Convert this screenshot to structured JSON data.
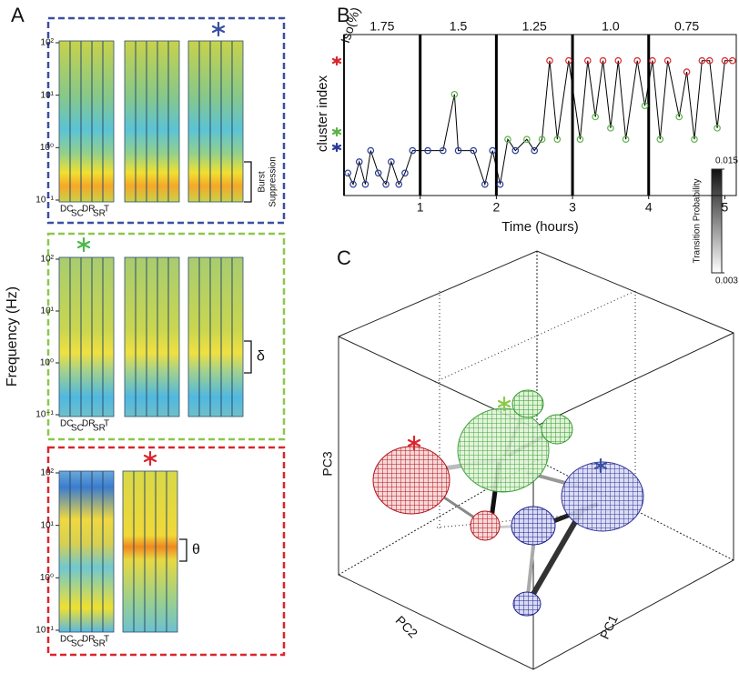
{
  "panel_labels": [
    "A",
    "B",
    "C"
  ],
  "panel_a": {
    "y_label": "Frequency (Hz)",
    "boxes": [
      {
        "tick_labels": [
          "10²",
          "10¹",
          "10⁰",
          "10⁻¹"
        ],
        "column_labels": [
          "DC",
          "SC",
          "DR",
          "SR",
          "T"
        ],
        "annotation": [
          "Burst",
          "Suppression"
        ]
      },
      {
        "tick_labels": [
          "10²",
          "10¹",
          "10⁰",
          "10⁻¹"
        ],
        "column_labels": [
          "DC",
          "SC",
          "DR",
          "SR",
          "T"
        ],
        "annotation": [
          "δ"
        ]
      },
      {
        "tick_labels": [
          "10²",
          "10¹",
          "10⁰",
          "10⁻¹"
        ],
        "column_labels": [
          "DC",
          "SC",
          "DR",
          "SR",
          "T"
        ],
        "annotation": [
          "θ"
        ]
      }
    ]
  },
  "chart_data": {
    "type": "line",
    "x_label": "Time (hours)",
    "y_label": "cluster index",
    "top_label": "Iso(%)",
    "top_categories": [
      "1.75",
      "1.5",
      "1.25",
      "1.0",
      "0.75"
    ],
    "x": [
      0.05,
      0.12,
      0.2,
      0.28,
      0.35,
      0.45,
      0.55,
      0.62,
      0.72,
      0.8,
      0.9,
      1.1,
      1.3,
      1.45,
      1.5,
      1.7,
      1.85,
      1.95,
      2.05,
      2.15,
      2.25,
      2.4,
      2.5,
      2.6,
      2.7,
      2.8,
      2.95,
      3.1,
      3.2,
      3.3,
      3.4,
      3.5,
      3.6,
      3.7,
      3.85,
      3.95,
      4.05,
      4.15,
      4.25,
      4.4,
      4.5,
      4.6,
      4.7,
      4.8,
      4.9,
      5.0,
      5.1
    ],
    "series": [
      {
        "color": "#000000",
        "values": [
          2,
          1,
          3,
          1,
          4,
          2,
          1,
          3,
          1,
          2,
          4,
          4,
          4,
          9,
          4,
          4,
          1,
          4,
          1,
          5,
          4,
          5,
          4,
          5,
          12,
          5,
          12,
          5,
          12,
          7,
          12,
          6,
          12,
          5,
          12,
          8,
          12,
          5,
          12,
          7,
          11,
          5,
          12,
          12,
          6,
          12,
          12
        ],
        "marker_colors": [
          "#2a3b9a",
          "#2a3b9a",
          "#2a3b9a",
          "#2a3b9a",
          "#2a3b9a",
          "#2a3b9a",
          "#2a3b9a",
          "#2a3b9a",
          "#2a3b9a",
          "#2a3b9a",
          "#2a3b9a",
          "#2a3b9a",
          "#2a3b9a",
          "#5cb247",
          "#2a3b9a",
          "#2a3b9a",
          "#2a3b9a",
          "#2a3b9a",
          "#2a3b9a",
          "#5cb247",
          "#2a3b9a",
          "#5cb247",
          "#2a3b9a",
          "#5cb247",
          "#d9262c",
          "#5cb247",
          "#d9262c",
          "#5cb247",
          "#d9262c",
          "#5cb247",
          "#d9262c",
          "#5cb247",
          "#d9262c",
          "#5cb247",
          "#d9262c",
          "#5cb247",
          "#d9262c",
          "#5cb247",
          "#d9262c",
          "#5cb247",
          "#d9262c",
          "#5cb247",
          "#d9262c",
          "#d9262c",
          "#5cb247",
          "#d9262c",
          "#d9262c"
        ]
      }
    ],
    "xlim": [
      0,
      5.15
    ],
    "ylim": [
      0,
      14
    ],
    "xticks": [
      1,
      2,
      3,
      4,
      5
    ]
  },
  "panel_c": {
    "axis_labels": [
      "PC1",
      "PC2",
      "PC3"
    ],
    "colorbar": {
      "label": "Transition Probability",
      "clim": [
        0.003,
        0.015
      ],
      "ticks": [
        0.015,
        0.003
      ]
    }
  }
}
